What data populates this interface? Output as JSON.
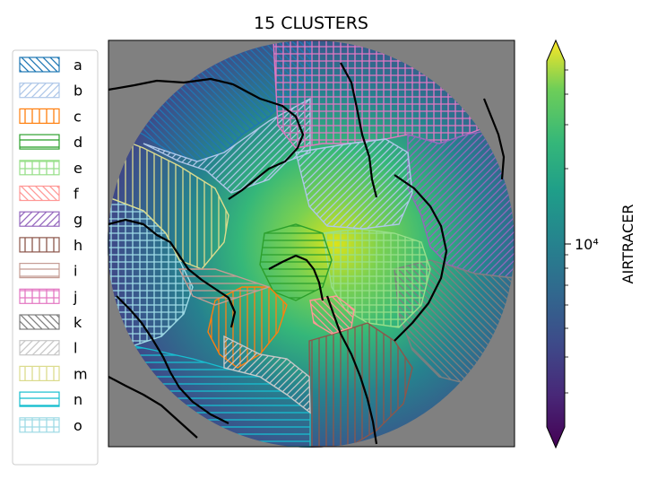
{
  "title": "15 CLUSTERS",
  "legend": {
    "entries": [
      {
        "label": "a",
        "color": "#1f77b4",
        "hatch": "back"
      },
      {
        "label": "b",
        "color": "#aec7e8",
        "hatch": "fwd"
      },
      {
        "label": "c",
        "color": "#ff7f0e",
        "hatch": "vert"
      },
      {
        "label": "d",
        "color": "#2ca02c",
        "hatch": "horiz"
      },
      {
        "label": "e",
        "color": "#98df8a",
        "hatch": "grid"
      },
      {
        "label": "f",
        "color": "#ff9896",
        "hatch": "back"
      },
      {
        "label": "g",
        "color": "#9467bd",
        "hatch": "fwd"
      },
      {
        "label": "h",
        "color": "#8c564b",
        "hatch": "vert"
      },
      {
        "label": "i",
        "color": "#c49c94",
        "hatch": "horiz"
      },
      {
        "label": "j",
        "color": "#e377c2",
        "hatch": "grid"
      },
      {
        "label": "k",
        "color": "#7f7f7f",
        "hatch": "back"
      },
      {
        "label": "l",
        "color": "#c7c7c7",
        "hatch": "fwd"
      },
      {
        "label": "m",
        "color": "#dbdb8d",
        "hatch": "vert"
      },
      {
        "label": "n",
        "color": "#17becf",
        "hatch": "horiz"
      },
      {
        "label": "o",
        "color": "#9edae5",
        "hatch": "grid"
      }
    ]
  },
  "colorbar": {
    "label": "AIRTRACER",
    "tick_label": "10⁴",
    "scale": "log",
    "colormap": "viridis",
    "extend": "both"
  },
  "map": {
    "projection": "north-polar stereographic",
    "background": "#808080"
  }
}
